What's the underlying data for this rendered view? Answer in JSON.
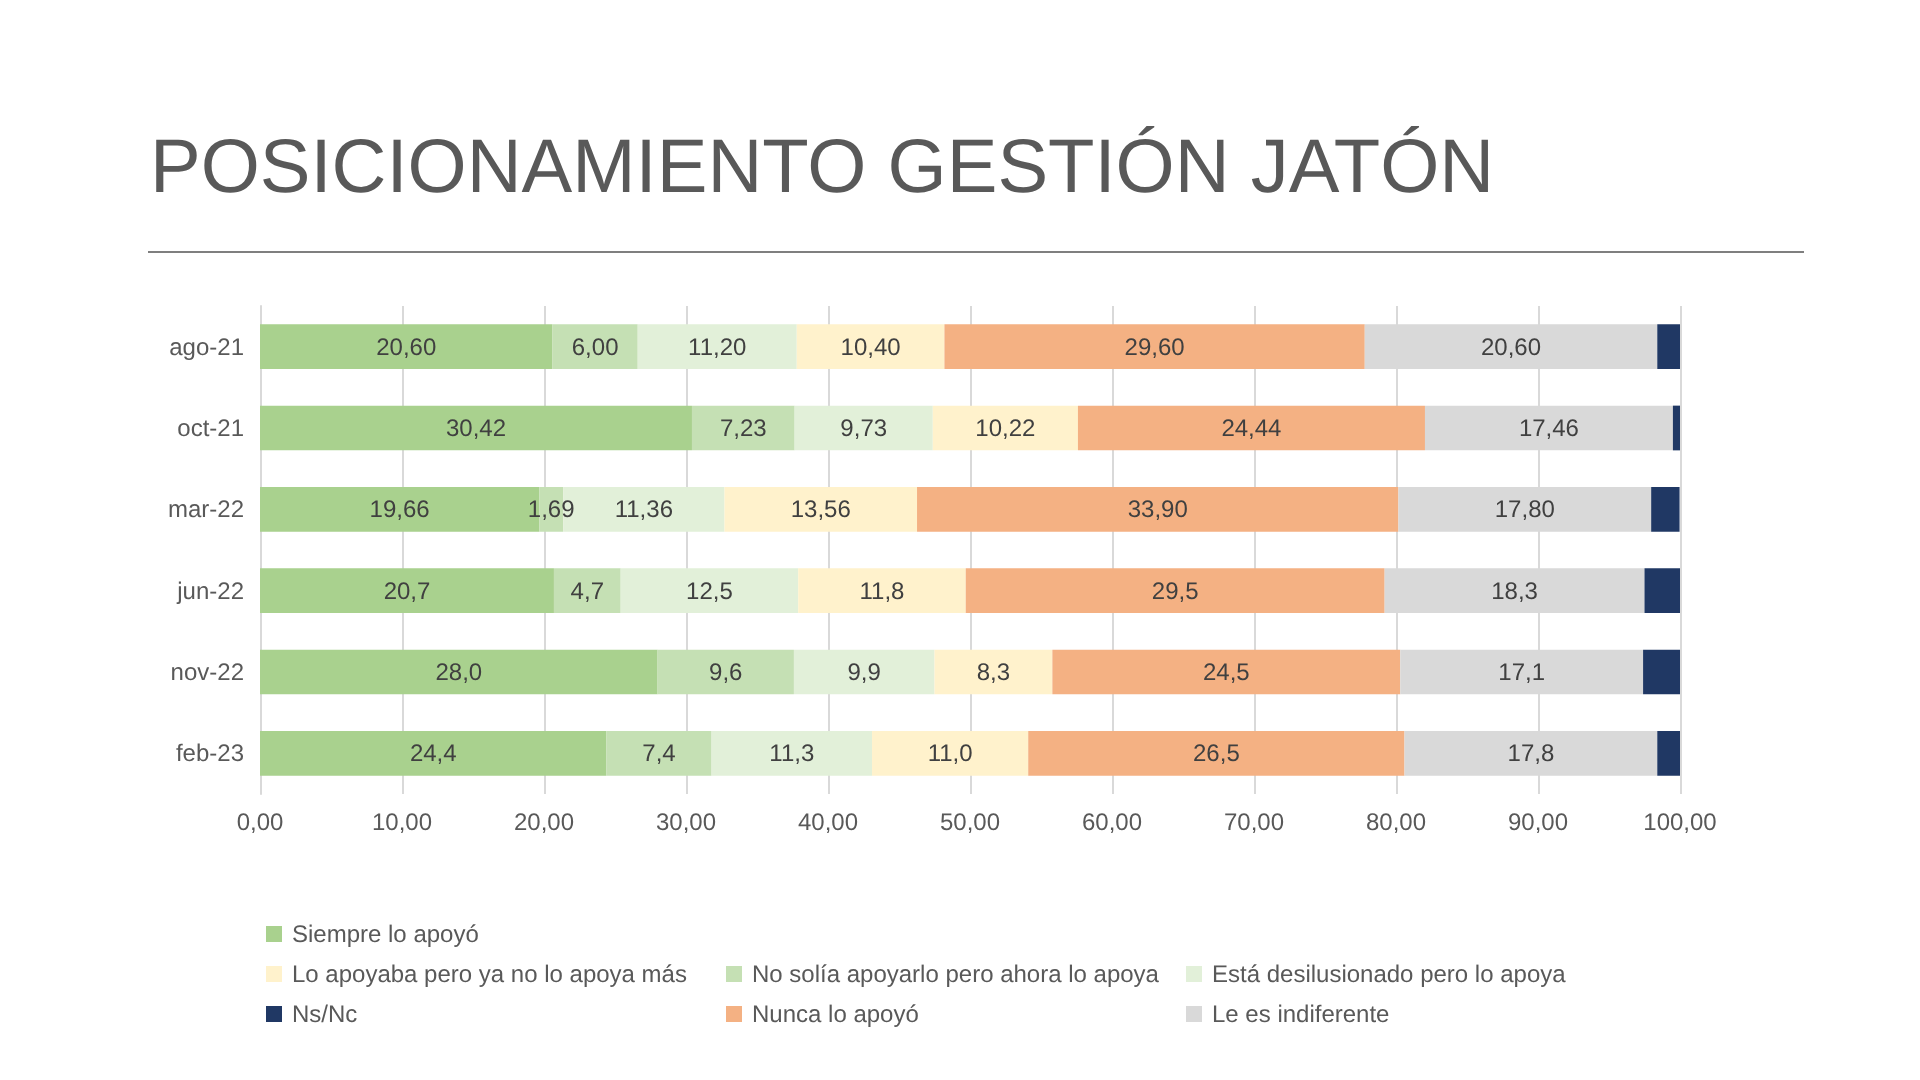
{
  "chart_data": {
    "type": "bar",
    "title": "POSICIONAMIENTO GESTIÓN JATÓN",
    "orientation": "horizontal",
    "stacked": true,
    "categories": [
      "ago-21",
      "oct-21",
      "mar-22",
      "jun-22",
      "nov-22",
      "feb-23"
    ],
    "series": [
      {
        "name": "Siempre lo apoyó",
        "color": "#a9d18e",
        "values": [
          20.6,
          30.42,
          19.66,
          20.7,
          28.0,
          24.4
        ],
        "value_labels": [
          "20,60",
          "30,42",
          "19,66",
          "20,7",
          "28,0",
          "24,4"
        ]
      },
      {
        "name": "No solía apoyarlo pero ahora lo apoya",
        "color": "#c5e0b4",
        "values": [
          6.0,
          7.23,
          1.69,
          4.7,
          9.6,
          7.4
        ],
        "value_labels": [
          "6,00",
          "7,23",
          "1,69",
          "4,7",
          "9,6",
          "7,4"
        ]
      },
      {
        "name": "Está desilusionado pero lo apoya",
        "color": "#e2f0d9",
        "values": [
          11.2,
          9.73,
          11.36,
          12.5,
          9.9,
          11.3
        ],
        "value_labels": [
          "11,20",
          "9,73",
          "11,36",
          "12,5",
          "9,9",
          "11,3"
        ]
      },
      {
        "name": "Lo apoyaba pero ya no lo apoya más",
        "color": "#fff2cc",
        "values": [
          10.4,
          10.22,
          13.56,
          11.8,
          8.3,
          11.0
        ],
        "value_labels": [
          "10,40",
          "10,22",
          "13,56",
          "11,8",
          "8,3",
          "11,0"
        ]
      },
      {
        "name": "Nunca lo apoyó",
        "color": "#f4b183",
        "values": [
          29.6,
          24.44,
          33.9,
          29.5,
          24.5,
          26.5
        ],
        "value_labels": [
          "29,60",
          "24,44",
          "33,90",
          "29,5",
          "24,5",
          "26,5"
        ]
      },
      {
        "name": "Le es indiferente",
        "color": "#d9d9d9",
        "values": [
          20.6,
          17.46,
          17.8,
          18.3,
          17.1,
          17.8
        ],
        "value_labels": [
          "20,60",
          "17,46",
          "17,80",
          "18,3",
          "17,1",
          "17,8"
        ]
      },
      {
        "name": "Ns/Nc",
        "color": "#203864",
        "values": [
          1.6,
          0.5,
          2.0,
          2.5,
          2.6,
          1.6
        ]
      }
    ],
    "xlim": [
      0,
      100
    ],
    "xticks": [
      {
        "value": 0,
        "label": "0,00"
      },
      {
        "value": 10,
        "label": "10,00"
      },
      {
        "value": 20,
        "label": "20,00"
      },
      {
        "value": 30,
        "label": "30,00"
      },
      {
        "value": 40,
        "label": "40,00"
      },
      {
        "value": 50,
        "label": "50,00"
      },
      {
        "value": 60,
        "label": "60,00"
      },
      {
        "value": 70,
        "label": "70,00"
      },
      {
        "value": 80,
        "label": "80,00"
      },
      {
        "value": 90,
        "label": "90,00"
      },
      {
        "value": 100,
        "label": "100,00"
      }
    ],
    "grid": "x",
    "legend": "bottom"
  }
}
